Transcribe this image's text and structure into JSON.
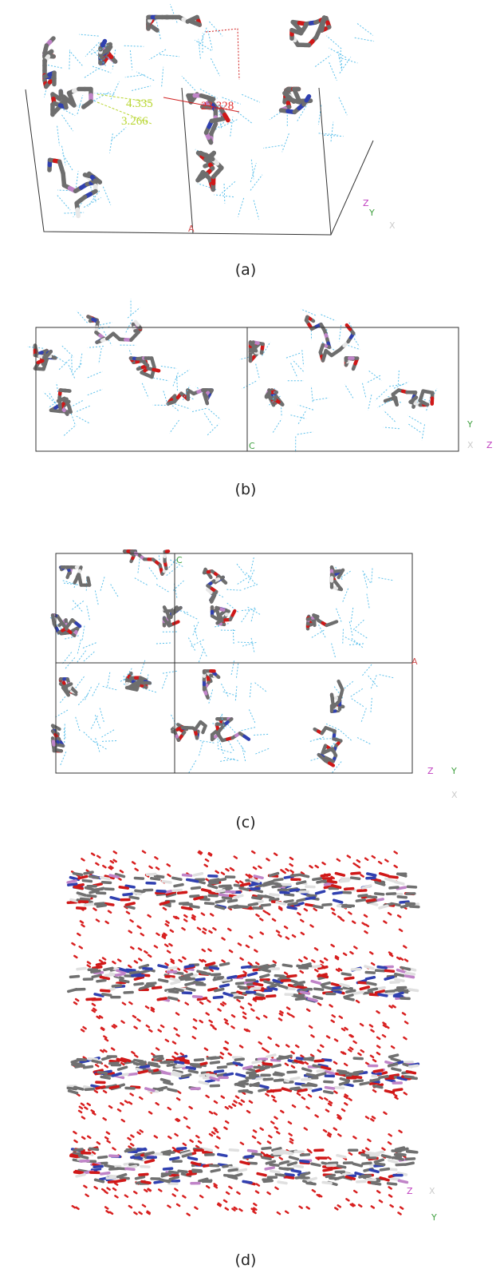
{
  "panels": [
    {
      "label": "(a)",
      "measurements": [
        "4.335",
        "3.266",
        "23.328"
      ],
      "axes": [
        "Z",
        "Y",
        "X"
      ],
      "cell_labels": [
        "A"
      ]
    },
    {
      "label": "(b)",
      "axes": [
        "Y",
        "X",
        "Z"
      ],
      "cell_labels": [
        "C"
      ]
    },
    {
      "label": "(c)",
      "axes": [
        "Z",
        "Y",
        "X"
      ],
      "cell_labels": [
        "C",
        "A"
      ]
    },
    {
      "label": "(d)",
      "axes": [
        "Z",
        "X",
        "Y"
      ]
    }
  ]
}
